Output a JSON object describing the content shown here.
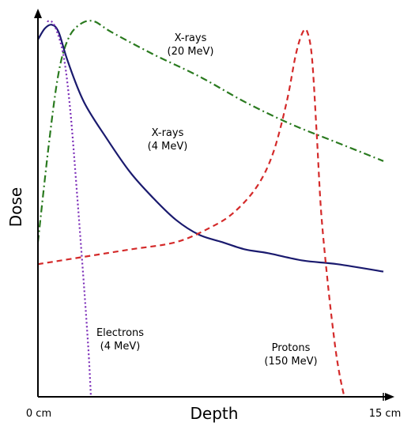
{
  "chart_data": {
    "type": "line",
    "xlabel": "Depth",
    "ylabel": "Dose",
    "x_ticks": [
      "0 cm",
      "15 cm"
    ],
    "xlim": [
      0,
      15
    ],
    "ylim": [
      0,
      1
    ],
    "grid": false,
    "legend": "none",
    "series": [
      {
        "key": "xray20",
        "label_lines": [
          "X-rays",
          "(20 MeV)"
        ],
        "color": "#2a7a1f",
        "style": "dashdot",
        "points": [
          [
            0,
            0.42
          ],
          [
            0.5,
            0.7
          ],
          [
            0.9,
            0.88
          ],
          [
            1.3,
            0.97
          ],
          [
            1.8,
            1.01
          ],
          [
            2.4,
            1.02
          ],
          [
            3.2,
            0.99
          ],
          [
            5,
            0.93
          ],
          [
            7,
            0.87
          ],
          [
            9,
            0.8
          ],
          [
            11,
            0.74
          ],
          [
            13,
            0.69
          ],
          [
            15,
            0.64
          ]
        ]
      },
      {
        "key": "xray4",
        "label_lines": [
          "X-rays",
          "(4 MeV)"
        ],
        "color": "#1a1a6e",
        "style": "solid",
        "points": [
          [
            0,
            0.97
          ],
          [
            0.3,
            1.0
          ],
          [
            0.6,
            1.01
          ],
          [
            0.9,
            0.99
          ],
          [
            1.3,
            0.91
          ],
          [
            2,
            0.8
          ],
          [
            3,
            0.7
          ],
          [
            4,
            0.61
          ],
          [
            5,
            0.54
          ],
          [
            6,
            0.48
          ],
          [
            7,
            0.44
          ],
          [
            8,
            0.42
          ],
          [
            9,
            0.4
          ],
          [
            10,
            0.39
          ],
          [
            11.5,
            0.37
          ],
          [
            13,
            0.36
          ],
          [
            15,
            0.34
          ]
        ]
      },
      {
        "key": "electrons",
        "label_lines": [
          "Electrons",
          "(4 MeV)"
        ],
        "color": "#7b2cb8",
        "style": "dotted",
        "points": [
          [
            0.4,
            1.02
          ],
          [
            0.7,
            1.01
          ],
          [
            1.1,
            0.93
          ],
          [
            1.4,
            0.78
          ],
          [
            1.7,
            0.55
          ],
          [
            2.0,
            0.3
          ],
          [
            2.2,
            0.12
          ],
          [
            2.3,
            0.0
          ]
        ]
      },
      {
        "key": "protons",
        "label_lines": [
          "Protons",
          "(150 MeV)"
        ],
        "color": "#d42a2a",
        "style": "dashed",
        "points": [
          [
            0,
            0.36
          ],
          [
            2,
            0.38
          ],
          [
            4,
            0.4
          ],
          [
            6,
            0.42
          ],
          [
            7.5,
            0.46
          ],
          [
            8.5,
            0.5
          ],
          [
            9.5,
            0.57
          ],
          [
            10.2,
            0.66
          ],
          [
            10.8,
            0.8
          ],
          [
            11.2,
            0.93
          ],
          [
            11.5,
            0.99
          ],
          [
            11.7,
            0.99
          ],
          [
            11.9,
            0.92
          ],
          [
            12.1,
            0.72
          ],
          [
            12.3,
            0.5
          ],
          [
            12.6,
            0.3
          ],
          [
            12.9,
            0.14
          ],
          [
            13.1,
            0.06
          ],
          [
            13.3,
            0.0
          ]
        ]
      }
    ]
  }
}
